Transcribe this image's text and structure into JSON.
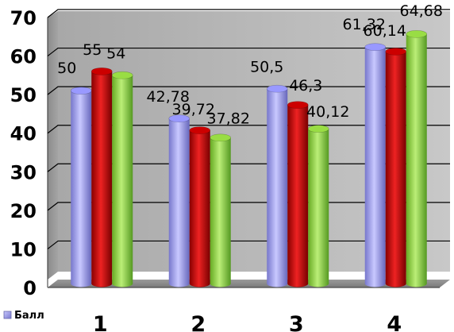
{
  "chart_data": {
    "type": "bar",
    "categories": [
      "1",
      "2",
      "3",
      "4"
    ],
    "series": [
      {
        "values": [
          50,
          42.78,
          50.5,
          61.32
        ],
        "labels": [
          "50",
          "42,78",
          "50,5",
          "61,32"
        ],
        "color": "#9999ff"
      },
      {
        "values": [
          55,
          39.72,
          46.3,
          60.14
        ],
        "labels": [
          "55",
          "39,72",
          "46,3",
          "60,14"
        ],
        "color": "#cc0000"
      },
      {
        "values": [
          54,
          37.82,
          40.12,
          64.68
        ],
        "labels": [
          "54",
          "37,82",
          "40,12",
          "64,68"
        ],
        "color": "#99dd44"
      }
    ],
    "yticks": [
      "0",
      "10",
      "20",
      "30",
      "40",
      "50",
      "60",
      "70"
    ],
    "ylim": [
      0,
      70
    ],
    "grid": true,
    "legend": {
      "position": "bottom-left",
      "entries": [
        "Балл"
      ]
    }
  }
}
